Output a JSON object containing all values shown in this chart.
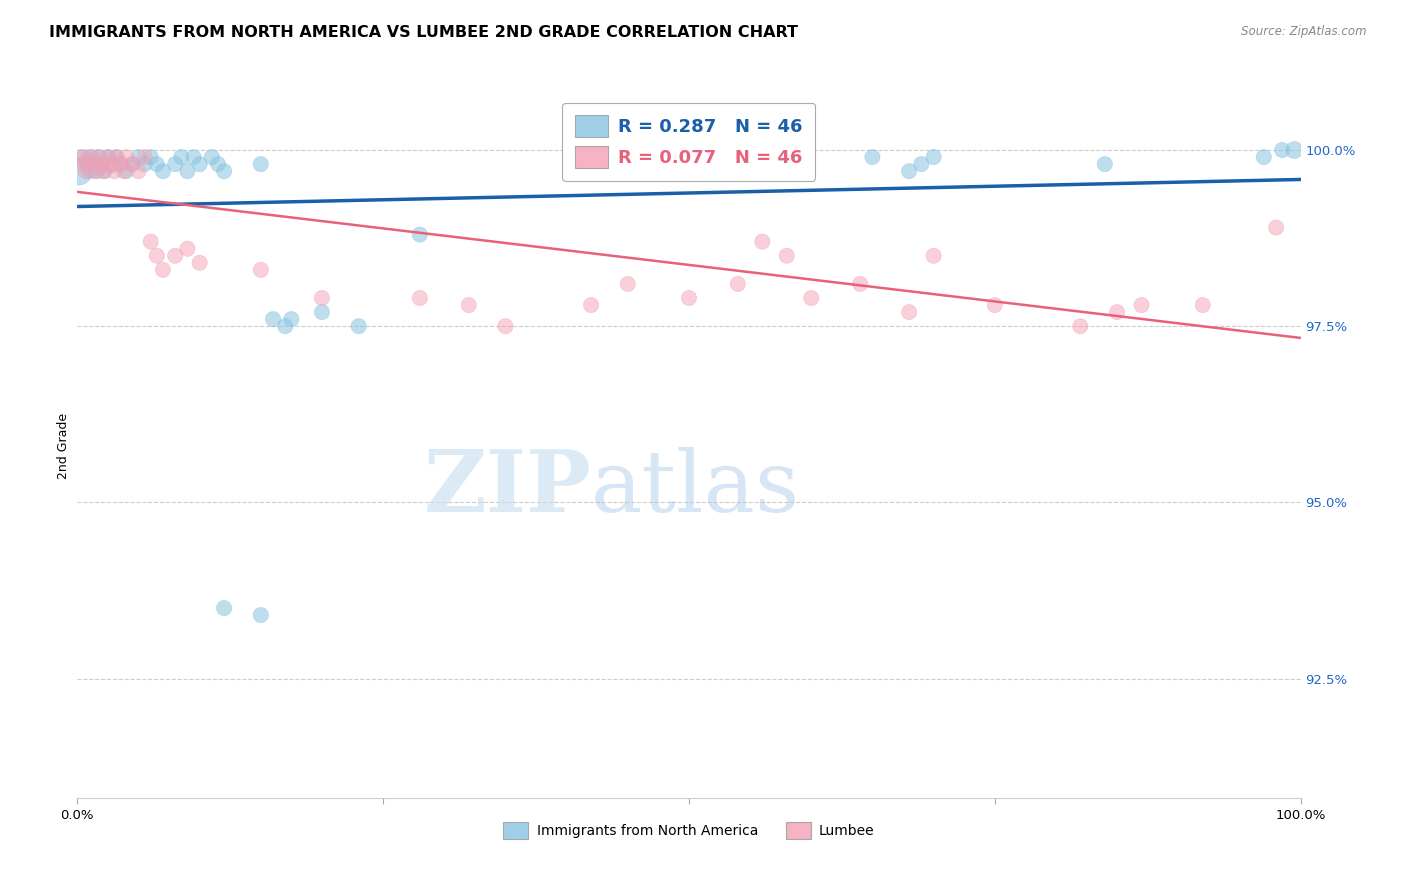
{
  "title": "IMMIGRANTS FROM NORTH AMERICA VS LUMBEE 2ND GRADE CORRELATION CHART",
  "source": "Source: ZipAtlas.com",
  "ylabel": "2nd Grade",
  "ytick_labels": [
    "100.0%",
    "97.5%",
    "95.0%",
    "92.5%"
  ],
  "ytick_values": [
    1.0,
    0.975,
    0.95,
    0.925
  ],
  "xlim": [
    0.0,
    1.0
  ],
  "ylim": [
    0.908,
    1.008
  ],
  "legend_blue_label": "Immigrants from North America",
  "legend_pink_label": "Lumbee",
  "R_blue": 0.287,
  "N_blue": 46,
  "R_pink": 0.077,
  "N_pink": 46,
  "blue_color": "#89c4e1",
  "pink_color": "#f4a0b5",
  "trend_blue_color": "#1a5fa8",
  "trend_pink_color": "#e8607a",
  "blue_points": [
    [
      0.001,
      0.997,
      400
    ],
    [
      0.005,
      0.999,
      120
    ],
    [
      0.008,
      0.998,
      120
    ],
    [
      0.01,
      0.997,
      120
    ],
    [
      0.012,
      0.999,
      120
    ],
    [
      0.014,
      0.998,
      120
    ],
    [
      0.016,
      0.997,
      120
    ],
    [
      0.018,
      0.999,
      120
    ],
    [
      0.02,
      0.998,
      120
    ],
    [
      0.022,
      0.997,
      120
    ],
    [
      0.025,
      0.999,
      120
    ],
    [
      0.028,
      0.998,
      150
    ],
    [
      0.032,
      0.999,
      120
    ],
    [
      0.036,
      0.998,
      120
    ],
    [
      0.04,
      0.997,
      120
    ],
    [
      0.045,
      0.998,
      120
    ],
    [
      0.05,
      0.999,
      120
    ],
    [
      0.055,
      0.998,
      120
    ],
    [
      0.06,
      0.999,
      120
    ],
    [
      0.065,
      0.998,
      120
    ],
    [
      0.07,
      0.997,
      120
    ],
    [
      0.08,
      0.998,
      120
    ],
    [
      0.085,
      0.999,
      120
    ],
    [
      0.09,
      0.997,
      120
    ],
    [
      0.095,
      0.999,
      120
    ],
    [
      0.1,
      0.998,
      120
    ],
    [
      0.11,
      0.999,
      120
    ],
    [
      0.115,
      0.998,
      120
    ],
    [
      0.12,
      0.997,
      120
    ],
    [
      0.15,
      0.998,
      120
    ],
    [
      0.16,
      0.976,
      120
    ],
    [
      0.17,
      0.975,
      120
    ],
    [
      0.175,
      0.976,
      120
    ],
    [
      0.2,
      0.977,
      120
    ],
    [
      0.23,
      0.975,
      120
    ],
    [
      0.28,
      0.988,
      120
    ],
    [
      0.12,
      0.935,
      120
    ],
    [
      0.15,
      0.934,
      120
    ],
    [
      0.65,
      0.999,
      120
    ],
    [
      0.68,
      0.997,
      120
    ],
    [
      0.69,
      0.998,
      120
    ],
    [
      0.7,
      0.999,
      120
    ],
    [
      0.84,
      0.998,
      120
    ],
    [
      0.97,
      0.999,
      120
    ],
    [
      0.985,
      1.0,
      120
    ],
    [
      0.995,
      1.0,
      150
    ]
  ],
  "pink_points": [
    [
      0.003,
      0.999,
      120
    ],
    [
      0.005,
      0.998,
      120
    ],
    [
      0.007,
      0.997,
      120
    ],
    [
      0.01,
      0.999,
      120
    ],
    [
      0.012,
      0.998,
      120
    ],
    [
      0.015,
      0.997,
      120
    ],
    [
      0.017,
      0.999,
      120
    ],
    [
      0.02,
      0.998,
      120
    ],
    [
      0.022,
      0.997,
      120
    ],
    [
      0.025,
      0.999,
      120
    ],
    [
      0.027,
      0.998,
      120
    ],
    [
      0.03,
      0.997,
      120
    ],
    [
      0.032,
      0.999,
      120
    ],
    [
      0.035,
      0.998,
      120
    ],
    [
      0.038,
      0.997,
      120
    ],
    [
      0.04,
      0.999,
      120
    ],
    [
      0.045,
      0.998,
      120
    ],
    [
      0.05,
      0.997,
      120
    ],
    [
      0.055,
      0.999,
      120
    ],
    [
      0.06,
      0.987,
      120
    ],
    [
      0.065,
      0.985,
      120
    ],
    [
      0.07,
      0.983,
      120
    ],
    [
      0.08,
      0.985,
      120
    ],
    [
      0.09,
      0.986,
      120
    ],
    [
      0.1,
      0.984,
      120
    ],
    [
      0.15,
      0.983,
      120
    ],
    [
      0.2,
      0.979,
      120
    ],
    [
      0.28,
      0.979,
      120
    ],
    [
      0.32,
      0.978,
      120
    ],
    [
      0.35,
      0.975,
      120
    ],
    [
      0.42,
      0.978,
      120
    ],
    [
      0.45,
      0.981,
      120
    ],
    [
      0.5,
      0.979,
      120
    ],
    [
      0.54,
      0.981,
      120
    ],
    [
      0.56,
      0.987,
      120
    ],
    [
      0.58,
      0.985,
      120
    ],
    [
      0.6,
      0.979,
      120
    ],
    [
      0.64,
      0.981,
      120
    ],
    [
      0.68,
      0.977,
      120
    ],
    [
      0.7,
      0.985,
      120
    ],
    [
      0.75,
      0.978,
      120
    ],
    [
      0.82,
      0.975,
      120
    ],
    [
      0.85,
      0.977,
      120
    ],
    [
      0.87,
      0.978,
      120
    ],
    [
      0.92,
      0.978,
      120
    ],
    [
      0.98,
      0.989,
      120
    ]
  ],
  "watermark_zip": "ZIP",
  "watermark_atlas": "atlas",
  "background_color": "#ffffff",
  "grid_color": "#cccccc",
  "title_fontsize": 11.5,
  "axis_label_fontsize": 9,
  "tick_fontsize": 9.5
}
